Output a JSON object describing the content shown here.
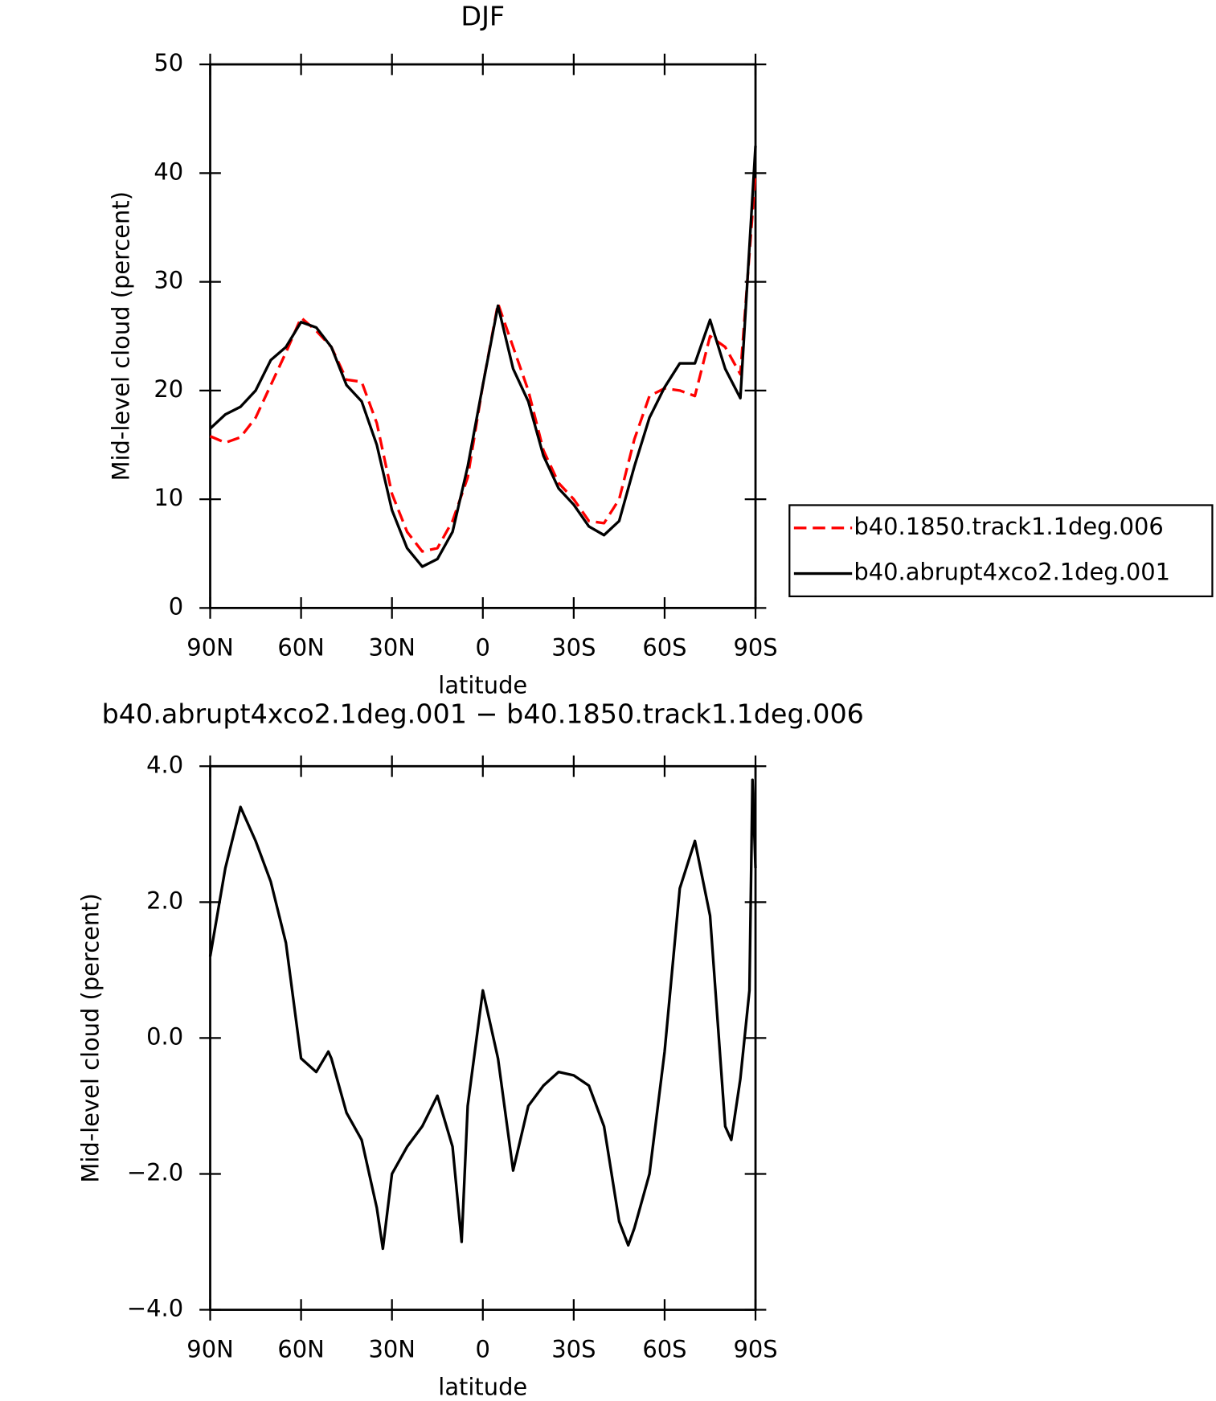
{
  "chart_data": [
    {
      "type": "line",
      "title": "DJF",
      "xlabel": "latitude",
      "ylabel": "Mid-level cloud (percent)",
      "x": [
        90,
        85,
        80,
        75,
        70,
        65,
        60,
        55,
        50,
        45,
        40,
        35,
        30,
        25,
        20,
        15,
        10,
        5,
        0,
        -5,
        -10,
        -15,
        -20,
        -25,
        -30,
        -35,
        -40,
        -45,
        -50,
        -55,
        -60,
        -65,
        -70,
        -75,
        -80,
        -85,
        -90
      ],
      "series": [
        {
          "name": "b40.1850.track1.1deg.006",
          "color": "#ff0000",
          "dashed": true,
          "values": [
            15.8,
            15.2,
            15.7,
            17.5,
            20.5,
            23.5,
            26.7,
            25.5,
            24,
            21,
            20.8,
            17,
            10.5,
            7,
            5.2,
            5.5,
            8,
            12,
            20.5,
            28,
            24,
            20,
            14.5,
            11.5,
            10,
            8,
            7.8,
            10,
            15.5,
            19.5,
            20.2,
            20,
            19.5,
            25,
            24,
            21.5,
            40
          ]
        },
        {
          "name": "b40.abrupt4xco2.1deg.001",
          "color": "#000000",
          "dashed": false,
          "values": [
            16.5,
            17.8,
            18.5,
            20,
            22.8,
            24,
            26.3,
            25.8,
            24,
            20.5,
            19,
            15,
            9,
            5.5,
            3.8,
            4.5,
            7,
            13,
            20.5,
            27.8,
            22,
            19,
            14,
            11,
            9.5,
            7.5,
            6.7,
            8,
            13,
            17.5,
            20.3,
            22.5,
            22.5,
            26.5,
            22,
            19.3,
            42.5
          ]
        }
      ],
      "xlim": [
        90,
        -90
      ],
      "xticks": [
        {
          "value": 90,
          "label": "90N"
        },
        {
          "value": 60,
          "label": "60N"
        },
        {
          "value": 30,
          "label": "30N"
        },
        0,
        {
          "value": -30,
          "label": "30S"
        },
        {
          "value": -60,
          "label": "60S"
        },
        {
          "value": -90,
          "label": "90S"
        }
      ],
      "ylim": [
        0,
        50
      ],
      "yticks": [
        0,
        10,
        20,
        30,
        40,
        50
      ],
      "legend": "right"
    },
    {
      "type": "line",
      "title": "b40.abrupt4xco2.1deg.001 − b40.1850.track1.1deg.006",
      "xlabel": "latitude",
      "ylabel": "Mid-level cloud (percent)",
      "x": [
        90,
        85,
        80,
        75,
        70,
        65,
        60,
        55,
        51,
        50,
        45,
        40,
        35,
        33,
        30,
        25,
        20,
        15,
        10,
        7,
        5,
        0,
        -5,
        -10,
        -15,
        -20,
        -25,
        -30,
        -35,
        -40,
        -45,
        -48,
        -50,
        -55,
        -60,
        -65,
        -70,
        -75,
        -80,
        -82,
        -85,
        -88,
        -89,
        -90
      ],
      "series": [
        {
          "color": "#000000",
          "values": [
            1.2,
            2.5,
            3.4,
            2.9,
            2.3,
            1.4,
            -0.3,
            -0.5,
            -0.2,
            -0.3,
            -1.1,
            -1.5,
            -2.5,
            -3.1,
            -2.0,
            -1.6,
            -1.3,
            -0.85,
            -1.6,
            -3.0,
            -1.0,
            0.7,
            -0.3,
            -1.95,
            -1.0,
            -0.7,
            -0.5,
            -0.55,
            -0.7,
            -1.3,
            -2.7,
            -3.05,
            -2.8,
            -2.0,
            -0.2,
            2.2,
            2.9,
            1.8,
            -1.3,
            -1.5,
            -0.6,
            0.7,
            3.8,
            2.5
          ]
        }
      ],
      "xlim": [
        90,
        -90
      ],
      "xticks": [
        {
          "value": 90,
          "label": "90N"
        },
        {
          "value": 60,
          "label": "60N"
        },
        {
          "value": 30,
          "label": "30N"
        },
        0,
        {
          "value": -30,
          "label": "30S"
        },
        {
          "value": -60,
          "label": "60S"
        },
        {
          "value": -90,
          "label": "90S"
        }
      ],
      "ylim": [
        -4,
        4
      ],
      "yticks": [
        {
          "value": -4,
          "label": "−4.0"
        },
        {
          "value": -2,
          "label": "−2.0"
        },
        {
          "value": 0,
          "label": "0.0"
        },
        {
          "value": 2,
          "label": "2.0"
        },
        {
          "value": 4,
          "label": "4.0"
        }
      ]
    }
  ]
}
